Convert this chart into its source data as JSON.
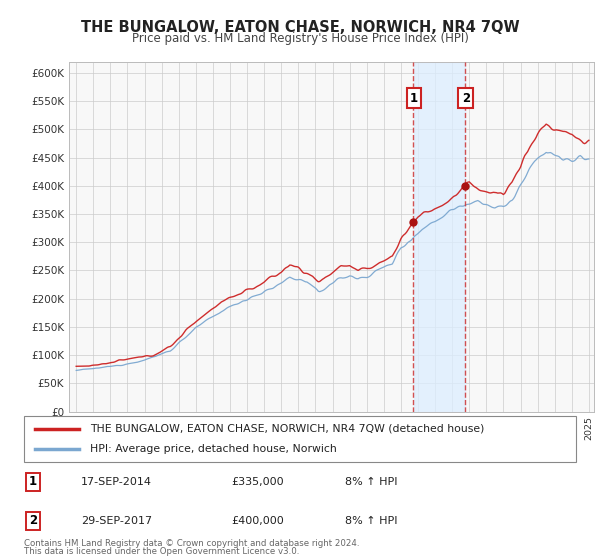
{
  "title": "THE BUNGALOW, EATON CHASE, NORWICH, NR4 7QW",
  "subtitle": "Price paid vs. HM Land Registry's House Price Index (HPI)",
  "ylim": [
    0,
    620000
  ],
  "yticks": [
    0,
    50000,
    100000,
    150000,
    200000,
    250000,
    300000,
    350000,
    400000,
    450000,
    500000,
    550000,
    600000
  ],
  "xlim_start": 1994.58,
  "xlim_end": 2025.3,
  "sale1_date": 2014.72,
  "sale1_price": 335000,
  "sale1_label": "17-SEP-2014",
  "sale1_amount": "£335,000",
  "sale1_hpi": "8% ↑ HPI",
  "sale2_date": 2017.75,
  "sale2_price": 400000,
  "sale2_label": "29-SEP-2017",
  "sale2_amount": "£400,000",
  "sale2_hpi": "8% ↑ HPI",
  "hpi_line_color": "#7ba7d0",
  "price_line_color": "#cc2222",
  "dot_color": "#aa1111",
  "shade_color": "#ddeeff",
  "vline_color": "#cc3333",
  "grid_color": "#cccccc",
  "bg_color": "#f8f8f8",
  "legend_line1": "THE BUNGALOW, EATON CHASE, NORWICH, NR4 7QW (detached house)",
  "legend_line2": "HPI: Average price, detached house, Norwich",
  "footnote1": "Contains HM Land Registry data © Crown copyright and database right 2024.",
  "footnote2": "This data is licensed under the Open Government Licence v3.0."
}
